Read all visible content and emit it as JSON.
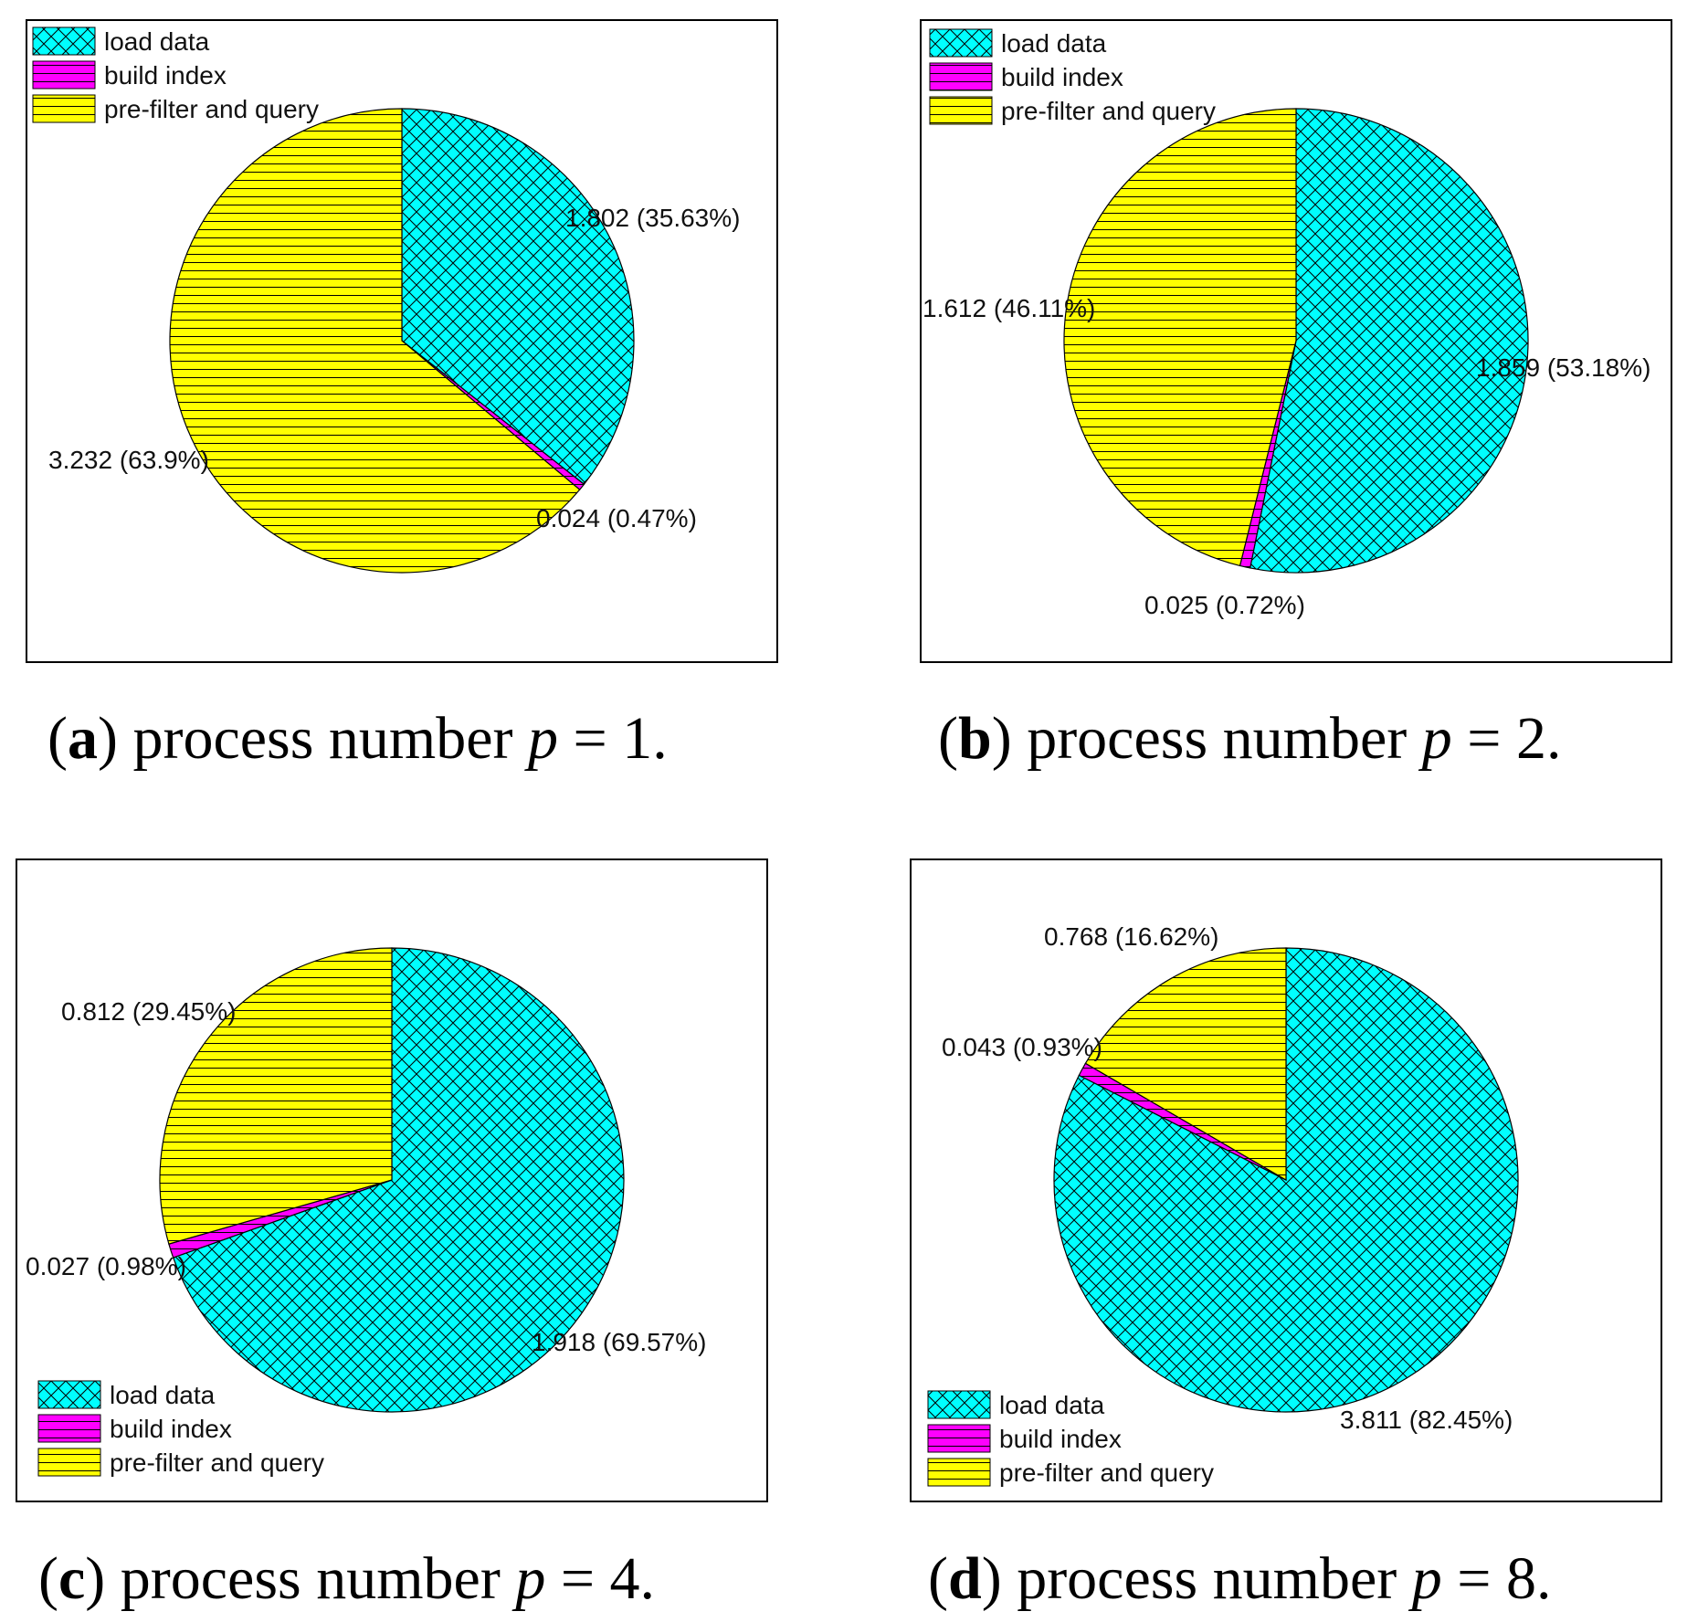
{
  "chart_data": [
    {
      "type": "pie",
      "panel": "a",
      "caption": {
        "letter": "a",
        "text": "process number",
        "var": "p",
        "eq": "= 1."
      },
      "legend_position": "top-left",
      "slices": [
        {
          "name": "load data",
          "value": 1.802,
          "percent": 35.63,
          "label": "1.802 (35.63%)",
          "color": "#00ffff",
          "pattern": "crosshatch"
        },
        {
          "name": "build index",
          "value": 0.024,
          "percent": 0.47,
          "label": "0.024 (0.47%)",
          "color": "#ff00ff",
          "pattern": "horizontal"
        },
        {
          "name": "pre-filter and query",
          "value": 3.232,
          "percent": 63.9,
          "label": "3.232 (63.9%)",
          "color": "#ffff00",
          "pattern": "horizontal"
        }
      ]
    },
    {
      "type": "pie",
      "panel": "b",
      "caption": {
        "letter": "b",
        "text": "process number",
        "var": "p",
        "eq": "= 2."
      },
      "legend_position": "top-left",
      "slices": [
        {
          "name": "load data",
          "value": 1.859,
          "percent": 53.18,
          "label": "1.859 (53.18%)",
          "color": "#00ffff",
          "pattern": "crosshatch"
        },
        {
          "name": "build index",
          "value": 0.025,
          "percent": 0.72,
          "label": "0.025 (0.72%)",
          "color": "#ff00ff",
          "pattern": "horizontal"
        },
        {
          "name": "pre-filter and query",
          "value": 1.612,
          "percent": 46.11,
          "label": "1.612 (46.11%)",
          "color": "#ffff00",
          "pattern": "horizontal"
        }
      ]
    },
    {
      "type": "pie",
      "panel": "c",
      "caption": {
        "letter": "c",
        "text": "process number",
        "var": "p",
        "eq": "= 4."
      },
      "legend_position": "bottom-left",
      "slices": [
        {
          "name": "load data",
          "value": 1.918,
          "percent": 69.57,
          "label": "1.918 (69.57%)",
          "color": "#00ffff",
          "pattern": "crosshatch"
        },
        {
          "name": "build index",
          "value": 0.027,
          "percent": 0.98,
          "label": "0.027 (0.98%)",
          "color": "#ff00ff",
          "pattern": "horizontal"
        },
        {
          "name": "pre-filter and query",
          "value": 0.812,
          "percent": 29.45,
          "label": "0.812 (29.45%)",
          "color": "#ffff00",
          "pattern": "horizontal"
        }
      ]
    },
    {
      "type": "pie",
      "panel": "d",
      "caption": {
        "letter": "d",
        "text": "process number",
        "var": "p",
        "eq": "= 8."
      },
      "legend_position": "bottom-left",
      "slices": [
        {
          "name": "load data",
          "value": 3.811,
          "percent": 82.45,
          "label": "3.811 (82.45%)",
          "color": "#00ffff",
          "pattern": "crosshatch"
        },
        {
          "name": "build index",
          "value": 0.043,
          "percent": 0.93,
          "label": "0.043 (0.93%)",
          "color": "#ff00ff",
          "pattern": "horizontal"
        },
        {
          "name": "pre-filter and query",
          "value": 0.768,
          "percent": 16.62,
          "label": "0.768 (16.62%)",
          "color": "#ffff00",
          "pattern": "horizontal"
        }
      ]
    }
  ]
}
